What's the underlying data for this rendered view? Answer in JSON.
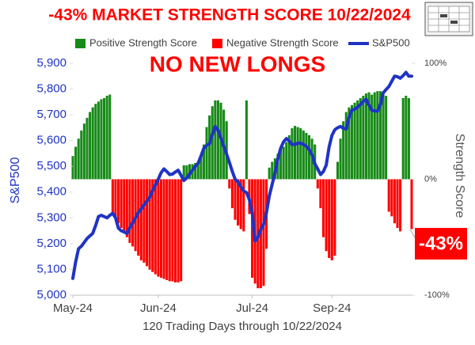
{
  "chart_data": {
    "type": "bar-line",
    "title": "-43% MARKET STRENGTH SCORE 10/22/2024",
    "annotations": [
      "NO NEW LONGS",
      "-43%"
    ],
    "y_label": "S&P500",
    "y2_label": "Strength Score",
    "x_label": "120 Trading Days through 10/22/2024",
    "xlim": [
      0,
      119
    ],
    "xticks": [
      {
        "value": 0,
        "label": "May-24"
      },
      {
        "value": 30,
        "label": "Jun-24"
      },
      {
        "value": 63,
        "label": "Jul-24"
      },
      {
        "value": 91,
        "label": "Sep-24"
      }
    ],
    "ylim": [
      5000,
      5900
    ],
    "yticks": [
      {
        "value": 5000,
        "label": "5,000"
      },
      {
        "value": 5100,
        "label": "5,100"
      },
      {
        "value": 5200,
        "label": "5,200"
      },
      {
        "value": 5300,
        "label": "5,300"
      },
      {
        "value": 5400,
        "label": "5,400"
      },
      {
        "value": 5500,
        "label": "5,500"
      },
      {
        "value": 5600,
        "label": "5,600"
      },
      {
        "value": 5700,
        "label": "5,700"
      },
      {
        "value": 5800,
        "label": "5,800"
      },
      {
        "value": 5900,
        "label": "5,900"
      }
    ],
    "y2lim": [
      -100,
      100
    ],
    "y2ticks": [
      {
        "value": 100,
        "label": "100%"
      },
      {
        "value": 0,
        "label": "0%"
      },
      {
        "value": -100,
        "label": "-100%"
      }
    ],
    "grid": false,
    "legend": "top",
    "series": [
      {
        "name": "Positive Strength Score",
        "type": "bar",
        "axis": "y2",
        "color": "#178a17",
        "values": [
          20,
          28,
          35,
          42,
          48,
          53,
          58,
          62,
          65,
          67,
          69,
          70,
          72,
          73,
          null,
          null,
          null,
          null,
          null,
          null,
          null,
          null,
          null,
          null,
          null,
          null,
          null,
          null,
          null,
          null,
          null,
          null,
          null,
          null,
          null,
          null,
          null,
          null,
          null,
          12,
          12,
          13,
          13,
          14,
          15,
          20,
          30,
          45,
          55,
          63,
          68,
          68,
          66,
          60,
          50,
          null,
          null,
          null,
          null,
          null,
          null,
          68,
          null,
          null,
          null,
          null,
          null,
          null,
          null,
          10,
          15,
          18,
          22,
          25,
          28,
          32,
          38,
          44,
          46,
          45,
          44,
          42,
          40,
          38,
          35,
          30,
          null,
          null,
          null,
          null,
          null,
          null,
          null,
          15,
          35,
          50,
          58,
          62,
          64,
          66,
          68,
          70,
          72,
          74,
          75,
          73,
          75,
          76,
          76,
          74,
          72,
          null,
          null,
          null,
          null,
          null,
          70,
          72,
          70,
          null
        ]
      },
      {
        "name": "Negative Strength Score",
        "type": "bar",
        "axis": "y2",
        "color": "#ff0000",
        "values": [
          null,
          null,
          null,
          null,
          null,
          null,
          null,
          null,
          null,
          null,
          null,
          null,
          null,
          null,
          -29,
          -33,
          -38,
          -42,
          -46,
          -50,
          -55,
          -58,
          -62,
          -66,
          -70,
          -72,
          -75,
          -78,
          -80,
          -82,
          -84,
          -85,
          -86,
          -87,
          -88,
          -88,
          -89,
          -89,
          -88,
          null,
          null,
          null,
          null,
          null,
          null,
          null,
          null,
          null,
          null,
          null,
          null,
          null,
          null,
          null,
          null,
          -8,
          -25,
          -35,
          -40,
          -43,
          -45,
          null,
          -30,
          -85,
          -90,
          -94,
          -94,
          -92,
          -60,
          null,
          null,
          null,
          null,
          null,
          null,
          null,
          null,
          null,
          null,
          null,
          null,
          null,
          null,
          null,
          null,
          null,
          -8,
          -25,
          -50,
          -62,
          -68,
          -70,
          -66,
          null,
          null,
          null,
          null,
          null,
          null,
          null,
          null,
          null,
          null,
          null,
          null,
          null,
          null,
          null,
          null,
          null,
          null,
          -28,
          -32,
          -38,
          -42,
          -45,
          null,
          null,
          null,
          -43
        ]
      },
      {
        "name": "S&P500",
        "type": "line",
        "axis": "y",
        "color": "#1f33c4",
        "values": [
          5065,
          5130,
          5180,
          5190,
          5205,
          5220,
          5230,
          5240,
          5270,
          5305,
          5310,
          5305,
          5300,
          5310,
          5318,
          5300,
          5260,
          5250,
          5245,
          5240,
          5262,
          5280,
          5300,
          5320,
          5335,
          5350,
          5365,
          5380,
          5405,
          5428,
          5450,
          5475,
          5490,
          5480,
          5468,
          5470,
          5478,
          5485,
          5465,
          5445,
          5455,
          5470,
          5485,
          5500,
          5512,
          5540,
          5570,
          5582,
          5588,
          5625,
          5655,
          5640,
          5610,
          5578,
          5548,
          5515,
          5480,
          5450,
          5440,
          5420,
          5405,
          5398,
          5370,
          5320,
          5210,
          5225,
          5255,
          5275,
          5320,
          5385,
          5430,
          5475,
          5530,
          5570,
          5595,
          5608,
          5598,
          5585,
          5585,
          5590,
          5590,
          5585,
          5578,
          5565,
          5545,
          5510,
          5490,
          5468,
          5480,
          5505,
          5575,
          5620,
          5642,
          5650,
          5655,
          5648,
          5645,
          5690,
          5718,
          5722,
          5730,
          5740,
          5752,
          5760,
          5738,
          5718,
          5715,
          5714,
          5740,
          5785,
          5798,
          5810,
          5830,
          5850,
          5848,
          5842,
          5852,
          5865,
          5850,
          5850
        ]
      }
    ]
  }
}
